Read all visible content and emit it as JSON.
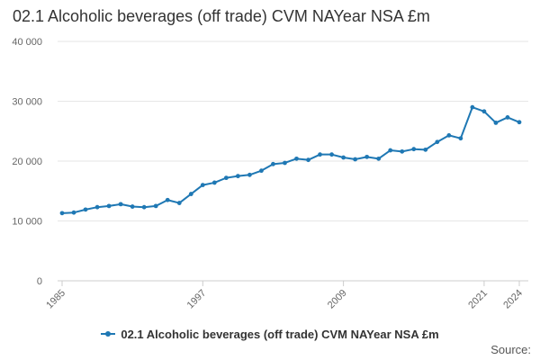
{
  "title": "02.1 Alcoholic beverages (off trade) CVM NAYear NSA £m",
  "source_label": "Source:",
  "colors": {
    "series": "#1f78b4",
    "grid": "#e6e6e6",
    "axis": "#cccccc"
  },
  "chart_data": {
    "type": "line",
    "title": "02.1 Alcoholic beverages (off trade) CVM NAYear NSA £m",
    "xlabel": "",
    "ylabel": "",
    "xlim": [
      1985,
      2024
    ],
    "ylim": [
      0,
      40000
    ],
    "y_ticks": [
      0,
      10000,
      20000,
      30000,
      40000
    ],
    "y_tick_labels": [
      "0",
      "10 000",
      "20 000",
      "30 000",
      "40 000"
    ],
    "x_ticks": [
      1985,
      1997,
      2009,
      2021,
      2024
    ],
    "x_tick_labels": [
      "1985",
      "1997",
      "2009",
      "2021",
      "2024"
    ],
    "grid": true,
    "legend_position": "bottom",
    "series": [
      {
        "name": "02.1 Alcoholic beverages (off trade) CVM NAYear NSA £m",
        "x": [
          1985,
          1986,
          1987,
          1988,
          1989,
          1990,
          1991,
          1992,
          1993,
          1994,
          1995,
          1996,
          1997,
          1998,
          1999,
          2000,
          2001,
          2002,
          2003,
          2004,
          2005,
          2006,
          2007,
          2008,
          2009,
          2010,
          2011,
          2012,
          2013,
          2014,
          2015,
          2016,
          2017,
          2018,
          2019,
          2020,
          2021,
          2022,
          2023,
          2024
        ],
        "values": [
          11300,
          11400,
          11900,
          12300,
          12500,
          12800,
          12400,
          12300,
          12500,
          13500,
          13000,
          14500,
          16000,
          16400,
          17200,
          17500,
          17700,
          18400,
          19500,
          19700,
          20400,
          20200,
          21100,
          21100,
          20600,
          20300,
          20700,
          20400,
          21800,
          21600,
          22000,
          21900,
          23200,
          24300,
          23800,
          29000,
          28300,
          26400,
          27300,
          26500
        ]
      }
    ]
  }
}
